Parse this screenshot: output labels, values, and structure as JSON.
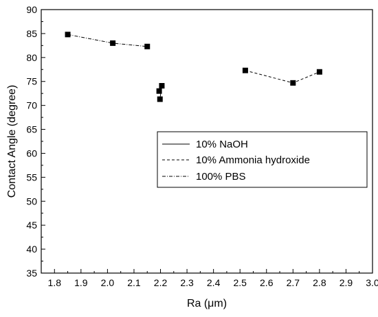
{
  "chart_data": {
    "type": "scatter",
    "xlabel": "Ra (μm)",
    "ylabel": "Contact Angle (degree)",
    "xlim": [
      1.75,
      3.0
    ],
    "ylim": [
      35,
      90
    ],
    "xticks": [
      1.8,
      1.9,
      2.0,
      2.1,
      2.2,
      2.3,
      2.4,
      2.5,
      2.6,
      2.7,
      2.8,
      2.9,
      3.0
    ],
    "xtick_labels": [
      "1.8",
      "1.9",
      "2.0",
      "2.1",
      "2.2",
      "2.3",
      "2.4",
      "2.5",
      "2.6",
      "2.7",
      "2.8",
      "2.9",
      "3.0"
    ],
    "yticks": [
      35,
      40,
      45,
      50,
      55,
      60,
      65,
      70,
      75,
      80,
      85,
      90
    ],
    "ytick_labels": [
      "35",
      "40",
      "45",
      "50",
      "55",
      "60",
      "65",
      "70",
      "75",
      "80",
      "85",
      "90"
    ],
    "grid": false,
    "legend_position": "center-right",
    "marker": "square",
    "color": "#000000",
    "series": [
      {
        "name": "10% NaOH",
        "line_style": "solid",
        "points": [
          [
            2.195,
            73.0
          ],
          [
            2.205,
            74.1
          ],
          [
            2.198,
            71.3
          ]
        ]
      },
      {
        "name": "10% Ammonia hydroxide",
        "line_style": "dashed",
        "points": [
          [
            2.52,
            77.3
          ],
          [
            2.7,
            74.7
          ],
          [
            2.8,
            77.0
          ]
        ]
      },
      {
        "name": "100% PBS",
        "line_style": "dash-dot",
        "points": [
          [
            1.85,
            84.8
          ],
          [
            2.02,
            83.0
          ],
          [
            2.15,
            82.3
          ]
        ]
      }
    ]
  }
}
